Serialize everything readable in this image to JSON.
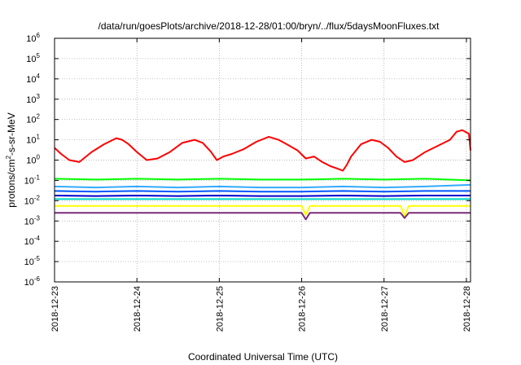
{
  "chart_data": {
    "type": "line",
    "title": "/data/run/goesPlots/archive/2018-12-28/01:00/bryn/../flux/5daysMoonFluxes.txt",
    "xlabel": "Coordinated Universal Time (UTC)",
    "ylabel_parts": {
      "pre": "protons/cm",
      "sup": "2",
      "post": "-s-sr-MeV"
    },
    "y_scale": "log",
    "ylim": [
      1e-06,
      1000000.0
    ],
    "y_ticks": [
      {
        "value": 1e-06,
        "base": "10",
        "exp": "-6"
      },
      {
        "value": 1e-05,
        "base": "10",
        "exp": "-5"
      },
      {
        "value": 0.0001,
        "base": "10",
        "exp": "-4"
      },
      {
        "value": 0.001,
        "base": "10",
        "exp": "-3"
      },
      {
        "value": 0.01,
        "base": "10",
        "exp": "-2"
      },
      {
        "value": 0.1,
        "base": "10",
        "exp": "-1"
      },
      {
        "value": 1.0,
        "base": "10",
        "exp": "0"
      },
      {
        "value": 10.0,
        "base": "10",
        "exp": "1"
      },
      {
        "value": 100.0,
        "base": "10",
        "exp": "2"
      },
      {
        "value": 1000.0,
        "base": "10",
        "exp": "3"
      },
      {
        "value": 10000.0,
        "base": "10",
        "exp": "4"
      },
      {
        "value": 100000.0,
        "base": "10",
        "exp": "5"
      },
      {
        "value": 1000000.0,
        "base": "10",
        "exp": "6"
      }
    ],
    "x_unit": "day",
    "xlim": [
      0,
      5.05
    ],
    "x_ticks": [
      {
        "value": 0,
        "label": "2018-12-23"
      },
      {
        "value": 1,
        "label": "2018-12-24"
      },
      {
        "value": 2,
        "label": "2018-12-25"
      },
      {
        "value": 3,
        "label": "2018-12-26"
      },
      {
        "value": 4,
        "label": "2018-12-27"
      },
      {
        "value": 5,
        "label": "2018-12-28"
      }
    ],
    "grid": true,
    "series": [
      {
        "color": "#ff0000",
        "x": [
          0,
          0.08,
          0.18,
          0.3,
          0.45,
          0.6,
          0.75,
          0.82,
          0.9,
          1.0,
          1.12,
          1.25,
          1.4,
          1.55,
          1.7,
          1.8,
          1.9,
          1.97,
          2.05,
          2.15,
          2.3,
          2.45,
          2.6,
          2.72,
          2.82,
          2.95,
          3.05,
          3.15,
          3.25,
          3.35,
          3.42,
          3.5,
          3.55,
          3.6,
          3.72,
          3.85,
          3.95,
          4.05,
          4.15,
          4.25,
          4.35,
          4.5,
          4.65,
          4.8,
          4.88,
          4.95,
          5.03,
          5.05
        ],
        "y": [
          4,
          2,
          1,
          0.8,
          2.5,
          6,
          12,
          10,
          6,
          2.5,
          1,
          1.2,
          2.5,
          7,
          10,
          7,
          2.5,
          1,
          1.5,
          2,
          3.5,
          8,
          14,
          10,
          6,
          3,
          1.2,
          1.5,
          0.8,
          0.5,
          0.4,
          0.3,
          0.6,
          1.5,
          6,
          10,
          8,
          4,
          1.5,
          0.8,
          1,
          2.5,
          5,
          10,
          25,
          30,
          20,
          3
        ]
      },
      {
        "color": "#00ff00",
        "x": [
          0,
          0.5,
          1,
          1.5,
          2,
          2.5,
          3,
          3.5,
          4,
          4.5,
          5.05
        ],
        "y": [
          0.12,
          0.11,
          0.12,
          0.11,
          0.12,
          0.11,
          0.11,
          0.12,
          0.11,
          0.12,
          0.1
        ]
      },
      {
        "color": "#33aaff",
        "x": [
          0,
          0.5,
          1,
          1.5,
          2,
          2.5,
          3,
          3.5,
          4,
          4.5,
          5.05
        ],
        "y": [
          0.05,
          0.045,
          0.05,
          0.045,
          0.05,
          0.045,
          0.045,
          0.05,
          0.045,
          0.05,
          0.06
        ]
      },
      {
        "color": "#0055ff",
        "x": [
          0,
          0.5,
          1,
          1.5,
          2,
          2.5,
          3,
          3.5,
          4,
          4.5,
          5.05
        ],
        "y": [
          0.03,
          0.028,
          0.03,
          0.028,
          0.03,
          0.028,
          0.028,
          0.03,
          0.028,
          0.03,
          0.03
        ]
      },
      {
        "color": "#00d6c6",
        "x": [
          0,
          0.5,
          1,
          1.5,
          2,
          2.5,
          3,
          3.5,
          4,
          4.5,
          5.05
        ],
        "y": [
          0.012,
          0.012,
          0.012,
          0.012,
          0.012,
          0.012,
          0.012,
          0.012,
          0.012,
          0.012,
          0.012
        ]
      },
      {
        "color": "#0000cc",
        "x": [
          0,
          0.5,
          1,
          1.5,
          2,
          2.5,
          3,
          3.5,
          4,
          4.5,
          5.05
        ],
        "y": [
          0.018,
          0.017,
          0.018,
          0.017,
          0.018,
          0.017,
          0.017,
          0.018,
          0.017,
          0.018,
          0.018
        ]
      },
      {
        "color": "#ffff00",
        "x": [
          0,
          0.5,
          1,
          1.5,
          2,
          2.5,
          3,
          3.05,
          3.1,
          3.5,
          4,
          4.2,
          4.25,
          4.3,
          4.5,
          5.05
        ],
        "y": [
          0.0055,
          0.0055,
          0.0055,
          0.0055,
          0.0055,
          0.0055,
          0.0055,
          0.002,
          0.0055,
          0.0055,
          0.0055,
          0.0055,
          0.0018,
          0.0055,
          0.0055,
          0.0055
        ]
      },
      {
        "color": "#7a2a7a",
        "x": [
          0,
          0.5,
          1,
          1.5,
          2,
          2.5,
          3,
          3.05,
          3.1,
          3.5,
          4,
          4.2,
          4.25,
          4.3,
          4.5,
          5.05
        ],
        "y": [
          0.0025,
          0.0025,
          0.0025,
          0.0025,
          0.0025,
          0.0025,
          0.0025,
          0.0012,
          0.0025,
          0.0025,
          0.0025,
          0.0025,
          0.0014,
          0.0025,
          0.0025,
          0.0025
        ]
      }
    ]
  }
}
